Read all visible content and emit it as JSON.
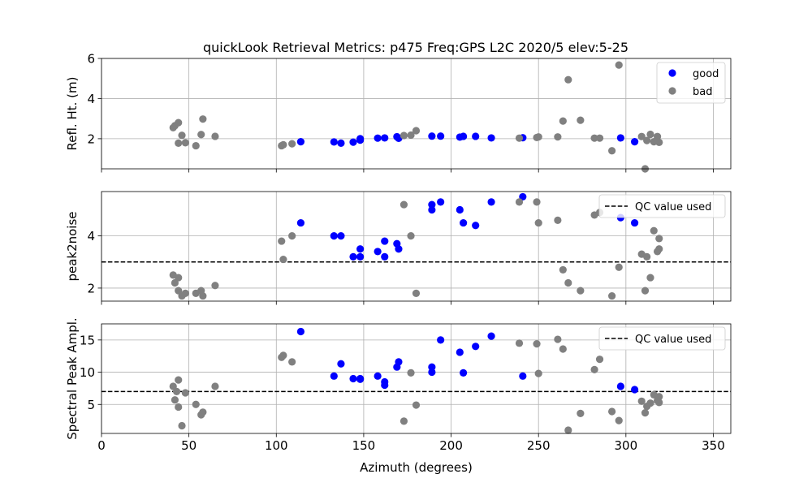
{
  "title": "quickLook Retrieval Metrics: p475 Freq:GPS L2C 2020/5  elev:5-25",
  "colors": {
    "good": "#0000ff",
    "bad": "#808080",
    "qc": "#000000"
  },
  "chart_data": [
    {
      "type": "scatter",
      "ylabel": "Refl. Ht. (m)",
      "xlim": [
        0,
        360
      ],
      "ylim": [
        0.5,
        6
      ],
      "xticks": [
        0,
        50,
        100,
        150,
        200,
        250,
        300,
        350
      ],
      "yticks": [
        2,
        4,
        6
      ],
      "show_xticklabels": false,
      "grid": true,
      "legend": {
        "placement": "top-right",
        "entries": [
          "good",
          "bad"
        ]
      },
      "series": [
        {
          "name": "good",
          "color": "#0000ff",
          "points": [
            [
              114,
              1.85
            ],
            [
              133,
              1.84
            ],
            [
              137,
              1.78
            ],
            [
              144,
              1.83
            ],
            [
              148,
              1.93
            ],
            [
              148,
              2.0
            ],
            [
              158,
              2.03
            ],
            [
              162,
              2.04
            ],
            [
              169,
              2.1
            ],
            [
              170,
              2.02
            ],
            [
              189,
              2.13
            ],
            [
              194,
              2.13
            ],
            [
              205,
              2.08
            ],
            [
              207,
              2.12
            ],
            [
              214,
              2.12
            ],
            [
              223,
              2.04
            ],
            [
              241,
              2.05
            ],
            [
              297,
              2.04
            ],
            [
              305,
              1.85
            ]
          ]
        },
        {
          "name": "bad",
          "color": "#808080",
          "points": [
            [
              41,
              2.55
            ],
            [
              42,
              2.65
            ],
            [
              44,
              2.8
            ],
            [
              44,
              1.78
            ],
            [
              46,
              2.17
            ],
            [
              48,
              1.8
            ],
            [
              54,
              1.65
            ],
            [
              57,
              2.21
            ],
            [
              58,
              2.98
            ],
            [
              65,
              2.12
            ],
            [
              103,
              1.65
            ],
            [
              104,
              1.7
            ],
            [
              109,
              1.75
            ],
            [
              173,
              2.16
            ],
            [
              177,
              2.18
            ],
            [
              180,
              2.4
            ],
            [
              239,
              2.03
            ],
            [
              249,
              2.06
            ],
            [
              250,
              2.09
            ],
            [
              261,
              2.09
            ],
            [
              264,
              2.88
            ],
            [
              267,
              4.94
            ],
            [
              274,
              2.92
            ],
            [
              282,
              2.03
            ],
            [
              285,
              2.03
            ],
            [
              292,
              1.4
            ],
            [
              296,
              5.67
            ],
            [
              309,
              2.11
            ],
            [
              311,
              0.5
            ],
            [
              312,
              1.91
            ],
            [
              314,
              2.22
            ],
            [
              316,
              1.85
            ],
            [
              318,
              2.11
            ],
            [
              319,
              1.82
            ]
          ]
        }
      ]
    },
    {
      "type": "scatter",
      "ylabel": "peak2noise",
      "xlim": [
        0,
        360
      ],
      "ylim": [
        1.5,
        5.7
      ],
      "xticks": [
        0,
        50,
        100,
        150,
        200,
        250,
        300,
        350
      ],
      "yticks": [
        2,
        4
      ],
      "show_xticklabels": false,
      "grid": true,
      "qc_value": 3.0,
      "legend": {
        "placement": "top-right",
        "entries": [
          "QC value used"
        ]
      },
      "series": [
        {
          "name": "good",
          "color": "#0000ff",
          "points": [
            [
              114,
              4.5
            ],
            [
              133,
              4.0
            ],
            [
              137,
              4.0
            ],
            [
              144,
              3.2
            ],
            [
              148,
              3.5
            ],
            [
              148,
              3.2
            ],
            [
              158,
              3.4
            ],
            [
              162,
              3.8
            ],
            [
              162,
              3.2
            ],
            [
              169,
              3.7
            ],
            [
              170,
              3.5
            ],
            [
              189,
              5.2
            ],
            [
              189,
              5.0
            ],
            [
              194,
              5.3
            ],
            [
              205,
              5.0
            ],
            [
              207,
              4.5
            ],
            [
              214,
              4.4
            ],
            [
              223,
              5.3
            ],
            [
              241,
              5.5
            ],
            [
              297,
              4.7
            ],
            [
              305,
              4.5
            ]
          ]
        },
        {
          "name": "bad",
          "color": "#808080",
          "points": [
            [
              41,
              2.5
            ],
            [
              42,
              2.2
            ],
            [
              44,
              2.4
            ],
            [
              44,
              1.9
            ],
            [
              46,
              1.7
            ],
            [
              48,
              1.8
            ],
            [
              54,
              1.8
            ],
            [
              57,
              1.9
            ],
            [
              58,
              1.7
            ],
            [
              65,
              2.1
            ],
            [
              103,
              3.8
            ],
            [
              104,
              3.1
            ],
            [
              109,
              4.0
            ],
            [
              173,
              5.2
            ],
            [
              177,
              4.0
            ],
            [
              180,
              1.8
            ],
            [
              239,
              5.3
            ],
            [
              249,
              5.3
            ],
            [
              250,
              4.5
            ],
            [
              261,
              4.6
            ],
            [
              264,
              2.7
            ],
            [
              267,
              2.2
            ],
            [
              274,
              1.9
            ],
            [
              282,
              4.8
            ],
            [
              285,
              4.9
            ],
            [
              292,
              1.7
            ],
            [
              296,
              2.8
            ],
            [
              309,
              3.3
            ],
            [
              311,
              1.9
            ],
            [
              312,
              3.2
            ],
            [
              314,
              2.4
            ],
            [
              316,
              4.2
            ],
            [
              318,
              3.4
            ],
            [
              319,
              3.5
            ],
            [
              319,
              3.9
            ]
          ]
        }
      ]
    },
    {
      "type": "scatter",
      "ylabel": "Spectral Peak Ampl.",
      "xlabel": "Azimuth (degrees)",
      "xlim": [
        0,
        360
      ],
      "ylim": [
        0.5,
        17.5
      ],
      "xticks": [
        0,
        50,
        100,
        150,
        200,
        250,
        300,
        350
      ],
      "yticks": [
        5,
        10,
        15
      ],
      "show_xticklabels": true,
      "grid": true,
      "qc_value": 7.0,
      "legend": {
        "placement": "top-right",
        "entries": [
          "QC value used"
        ]
      },
      "series": [
        {
          "name": "good",
          "color": "#0000ff",
          "points": [
            [
              114,
              16.3
            ],
            [
              133,
              9.4
            ],
            [
              137,
              11.3
            ],
            [
              144,
              9.0
            ],
            [
              148,
              9.0
            ],
            [
              148,
              8.9
            ],
            [
              158,
              9.4
            ],
            [
              162,
              8.5
            ],
            [
              162,
              8.0
            ],
            [
              169,
              10.8
            ],
            [
              170,
              11.6
            ],
            [
              189,
              10.0
            ],
            [
              189,
              10.8
            ],
            [
              194,
              15.0
            ],
            [
              205,
              13.1
            ],
            [
              207,
              9.9
            ],
            [
              214,
              14.0
            ],
            [
              223,
              15.6
            ],
            [
              241,
              9.4
            ],
            [
              297,
              7.8
            ],
            [
              305,
              7.3
            ]
          ]
        },
        {
          "name": "bad",
          "color": "#808080",
          "points": [
            [
              41,
              7.8
            ],
            [
              42,
              5.7
            ],
            [
              43,
              7.0
            ],
            [
              44,
              8.8
            ],
            [
              44,
              4.6
            ],
            [
              46,
              1.7
            ],
            [
              48,
              6.8
            ],
            [
              54,
              5.0
            ],
            [
              57,
              3.4
            ],
            [
              58,
              3.8
            ],
            [
              65,
              7.8
            ],
            [
              103,
              12.3
            ],
            [
              104,
              12.6
            ],
            [
              109,
              11.6
            ],
            [
              173,
              2.4
            ],
            [
              177,
              9.9
            ],
            [
              180,
              4.9
            ],
            [
              239,
              14.5
            ],
            [
              249,
              14.4
            ],
            [
              250,
              9.8
            ],
            [
              261,
              15.1
            ],
            [
              264,
              13.6
            ],
            [
              267,
              1.0
            ],
            [
              274,
              3.6
            ],
            [
              282,
              10.4
            ],
            [
              285,
              12.0
            ],
            [
              292,
              3.9
            ],
            [
              296,
              2.5
            ],
            [
              309,
              5.5
            ],
            [
              311,
              3.7
            ],
            [
              312,
              4.7
            ],
            [
              314,
              5.2
            ],
            [
              316,
              6.5
            ],
            [
              318,
              5.6
            ],
            [
              319,
              6.2
            ],
            [
              319,
              5.3
            ]
          ]
        }
      ]
    }
  ]
}
